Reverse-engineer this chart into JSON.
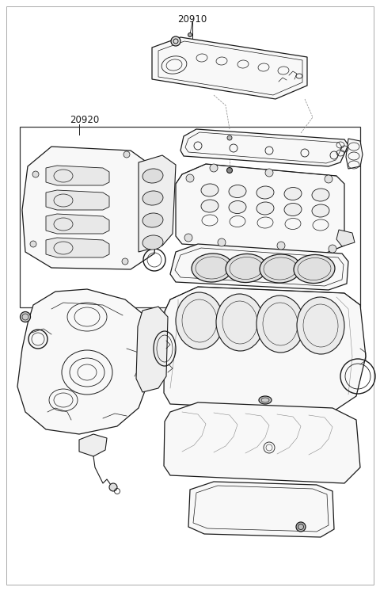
{
  "bg": "#ffffff",
  "lc": "#1a1a1a",
  "lc_light": "#555555",
  "border_lc": "#888888",
  "label_20910": "20910",
  "label_20920": "20920",
  "fig_width": 4.8,
  "fig_height": 7.46,
  "dpi": 100
}
